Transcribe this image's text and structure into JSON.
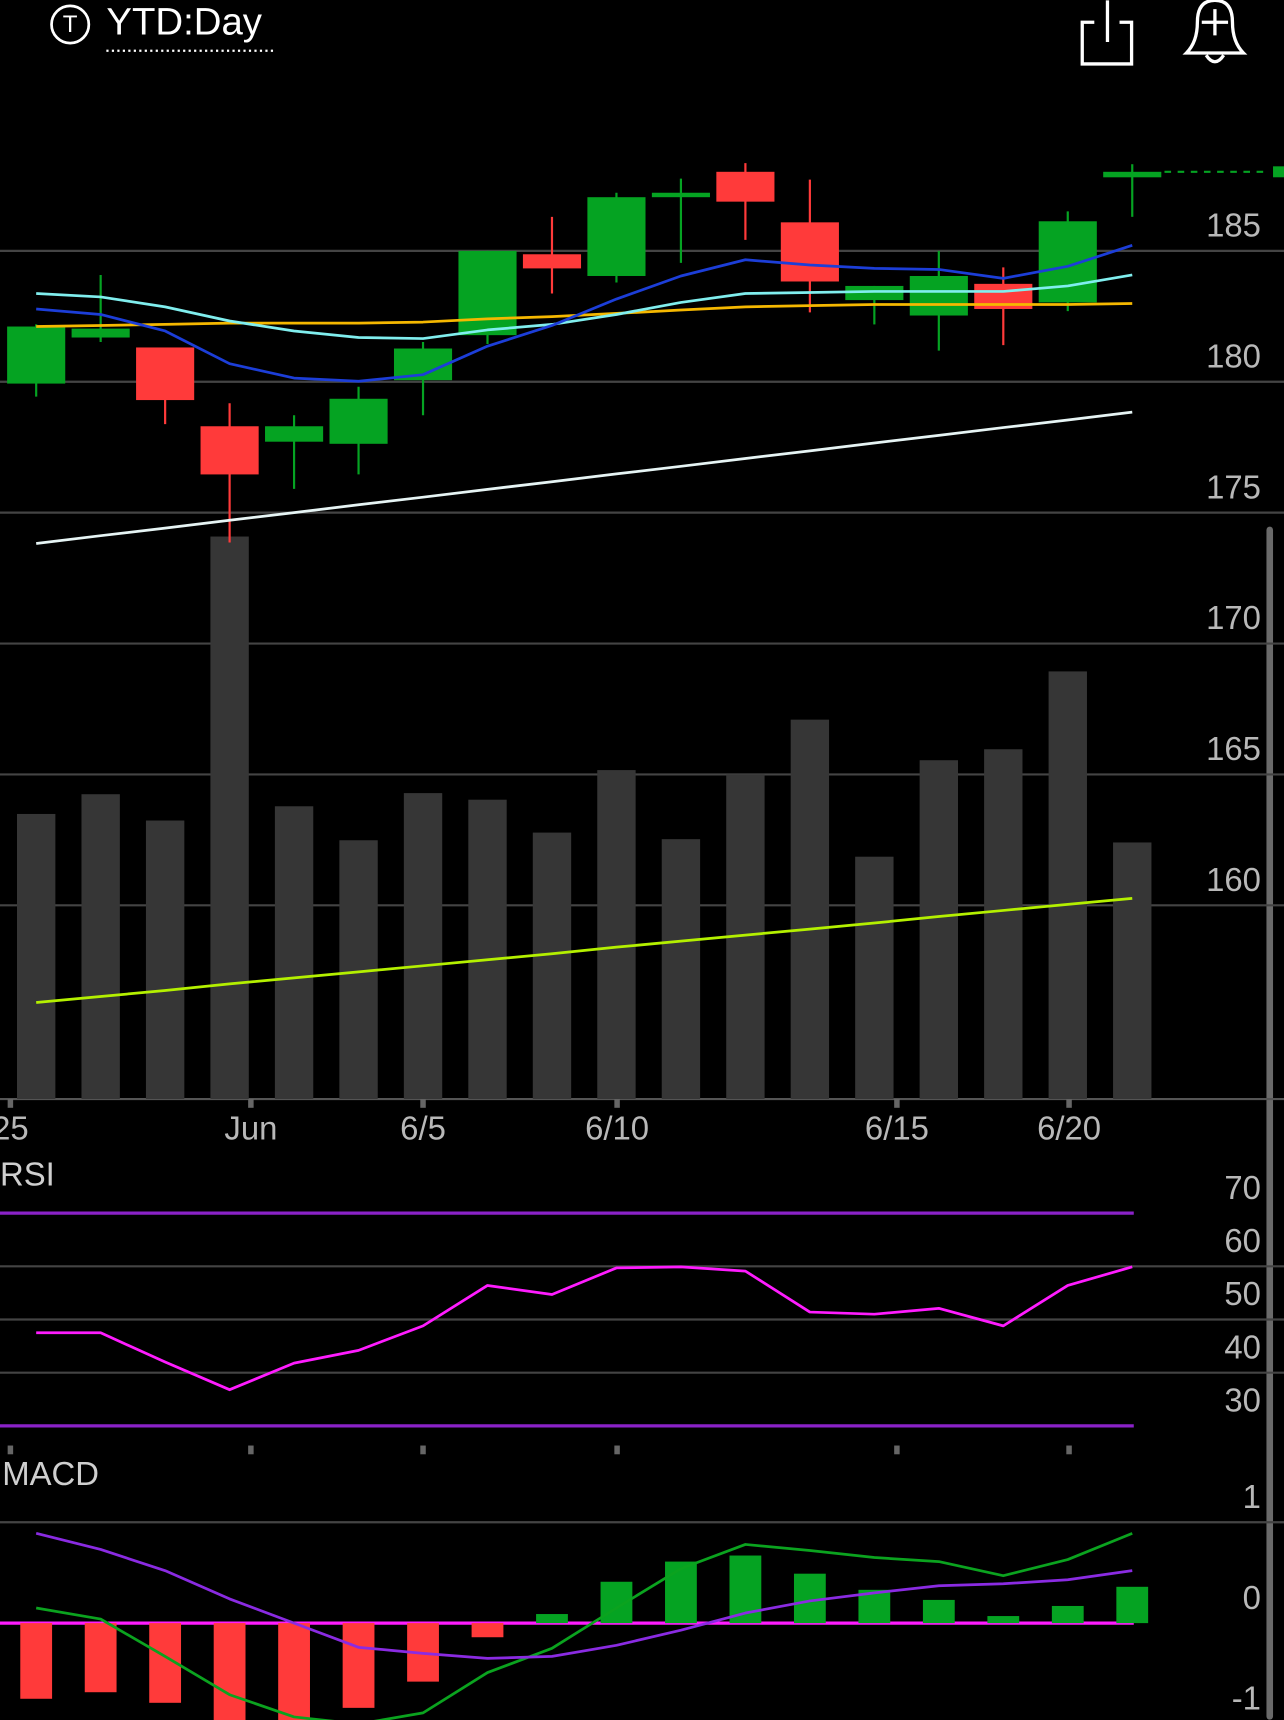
{
  "header": {
    "icon": "T",
    "title": "YTD:Day"
  },
  "chart_data": [
    {
      "type": "candlestick",
      "categories": [
        null,
        null,
        null,
        null,
        null,
        null,
        null,
        null,
        null,
        null,
        null,
        null,
        null,
        null,
        null,
        null,
        null,
        null
      ],
      "xticks": [
        {
          "value": -0.4,
          "label": "25"
        },
        {
          "value": 3.33,
          "label": "Jun"
        },
        {
          "value": 6.0,
          "label": "6/5"
        },
        {
          "value": 9.01,
          "label": "6/10"
        },
        {
          "value": 13.35,
          "label": "6/15"
        },
        {
          "value": 16.02,
          "label": "6/20"
        }
      ],
      "open": [
        179.93,
        181.69,
        181.31,
        178.3,
        177.71,
        177.63,
        180.06,
        181.78,
        184.87,
        184.04,
        187.05,
        188.02,
        186.09,
        183.12,
        182.53,
        183.74,
        183.03,
        187.81
      ],
      "high": [
        182.19,
        184.08,
        181.31,
        179.18,
        178.72,
        179.81,
        181.52,
        185.0,
        186.3,
        187.22,
        187.76,
        188.35,
        187.72,
        183.66,
        185.0,
        184.37,
        186.51,
        188.31
      ],
      "low": [
        179.43,
        181.52,
        178.38,
        173.86,
        175.91,
        176.46,
        178.72,
        181.44,
        183.37,
        183.79,
        184.54,
        185.42,
        182.65,
        182.19,
        181.19,
        181.4,
        182.7,
        186.3
      ],
      "close": [
        182.11,
        182.03,
        179.3,
        176.46,
        178.3,
        179.35,
        181.27,
        185.0,
        184.33,
        187.05,
        187.22,
        186.88,
        183.83,
        183.66,
        184.04,
        182.78,
        186.13,
        188.02
      ],
      "up_color": "#05a322",
      "down_color": "#ff3a3a",
      "series": [
        {
          "color": "#e6f4f4",
          "values": [
            173.82,
            174.12,
            174.41,
            174.71,
            175.0,
            175.3,
            175.59,
            175.89,
            176.18,
            176.48,
            176.77,
            177.07,
            177.36,
            177.66,
            177.95,
            178.25,
            178.54,
            178.84
          ]
        },
        {
          "color": "#f5b800",
          "values": [
            182.11,
            182.15,
            182.19,
            182.24,
            182.24,
            182.24,
            182.28,
            182.4,
            182.49,
            182.61,
            182.74,
            182.86,
            182.91,
            182.95,
            182.95,
            182.95,
            182.95,
            182.99
          ]
        },
        {
          "color": "#80eeee",
          "values": [
            183.37,
            183.24,
            182.86,
            182.32,
            181.94,
            181.69,
            181.65,
            181.98,
            182.19,
            182.57,
            183.03,
            183.37,
            183.41,
            183.45,
            183.45,
            183.45,
            183.66,
            184.08
          ]
        },
        {
          "color": "#1c3ed8",
          "values": [
            182.78,
            182.57,
            181.94,
            180.69,
            180.14,
            180.02,
            180.27,
            181.36,
            182.15,
            183.16,
            184.04,
            184.66,
            184.46,
            184.33,
            184.29,
            183.95,
            184.41,
            185.21
          ]
        }
      ],
      "volume": [
        52,
        55.6,
        50.8,
        102.6,
        53.4,
        47.2,
        55.8,
        54.6,
        48.6,
        60,
        47.4,
        59.2,
        69.2,
        44.2,
        61.8,
        63.8,
        78,
        46.8
      ],
      "volume_color": "#363636",
      "volume_ma": {
        "color": "#b4f000",
        "values": [
          17.6,
          18.7,
          19.8,
          21.0,
          22.1,
          23.2,
          24.3,
          25.4,
          26.5,
          27.7,
          28.8,
          29.9,
          31.0,
          32.1,
          33.3,
          34.4,
          35.5,
          36.6
        ]
      },
      "ylim": [
        152.6,
        190.8
      ],
      "yticks": [
        160,
        165,
        170,
        175,
        180,
        185
      ],
      "grid": true
    },
    {
      "type": "line",
      "title": "RSI",
      "series": [
        {
          "color": "#ff1cff",
          "values": [
            47.5,
            47.5,
            42.0,
            36.8,
            41.8,
            44.2,
            48.8,
            56.4,
            54.7,
            59.7,
            59.9,
            59.1,
            51.4,
            51.0,
            52.1,
            48.8,
            56.4,
            59.9
          ]
        }
      ],
      "ylim": [
        26.3,
        79.5
      ],
      "yticks": [
        30,
        40,
        50,
        60,
        70
      ],
      "limit_color": "#8a22c8",
      "grid": true
    },
    {
      "type": "macd",
      "title": "MACD",
      "histogram": [
        -0.75,
        -0.685,
        -0.79,
        -1.05,
        -1.02,
        -0.84,
        -0.58,
        -0.14,
        0.09,
        0.41,
        0.61,
        0.67,
        0.49,
        0.33,
        0.23,
        0.07,
        0.17,
        0.36
      ],
      "up_color": "#05a322",
      "down_color": "#ff3a3a",
      "series": [
        {
          "color": "#0ba31f",
          "values": [
            0.15,
            0.04,
            -0.33,
            -0.71,
            -0.93,
            -1.0,
            -0.89,
            -0.49,
            -0.25,
            0.15,
            0.54,
            0.78,
            0.72,
            0.65,
            0.61,
            0.47,
            0.63,
            0.89
          ]
        },
        {
          "color": "#8a2be2",
          "values": [
            0.89,
            0.73,
            0.52,
            0.24,
            0.0,
            -0.24,
            -0.3,
            -0.35,
            -0.33,
            -0.22,
            -0.07,
            0.1,
            0.22,
            0.3,
            0.37,
            0.39,
            0.43,
            0.52
          ]
        }
      ],
      "ylim": [
        -0.957,
        1.63
      ],
      "yticks": [
        -1,
        0,
        1
      ],
      "zero_color": "#ff1cff",
      "grid": true
    }
  ]
}
